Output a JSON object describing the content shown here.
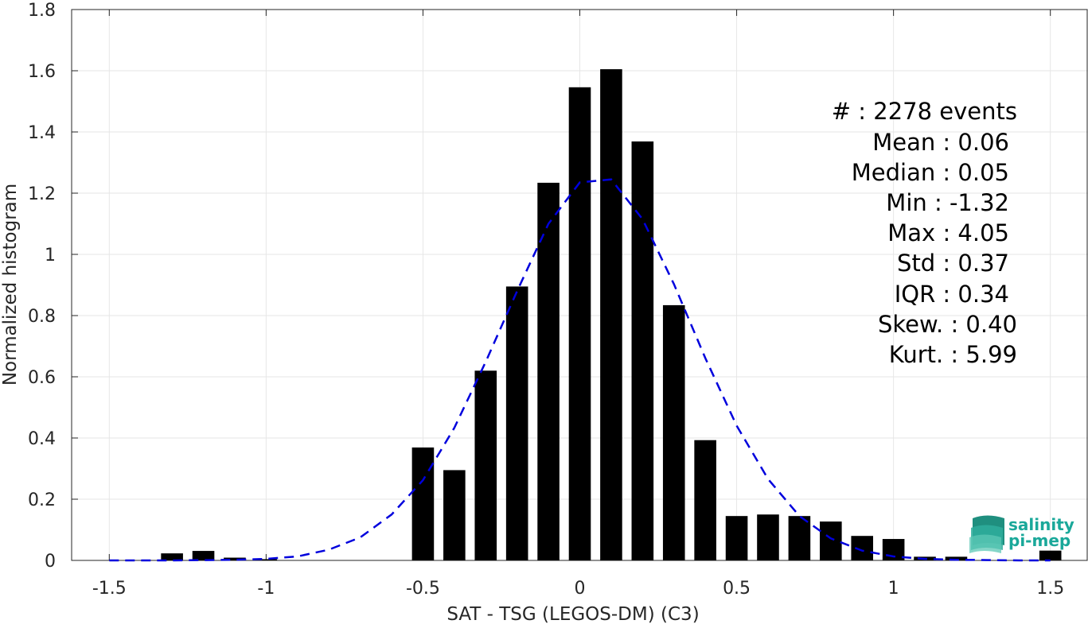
{
  "chart_data": {
    "type": "bar",
    "xlabel": "SAT - TSG (LEGOS-DM) (C3)",
    "ylabel": "Normalized histogram",
    "xlim": [
      -1.62,
      1.62
    ],
    "ylim": [
      0,
      1.8
    ],
    "xticks": [
      -1.5,
      -1,
      -0.5,
      0,
      0.5,
      1,
      1.5
    ],
    "xtick_labels": [
      "-1.5",
      "-1",
      "-0.5",
      "0",
      "0.5",
      "1",
      "1.5"
    ],
    "yticks": [
      0,
      0.2,
      0.4,
      0.6,
      0.8,
      1,
      1.2,
      1.4,
      1.6,
      1.8
    ],
    "ytick_labels": [
      "0",
      "0.2",
      "0.4",
      "0.6",
      "0.8",
      "1",
      "1.2",
      "1.4",
      "1.6",
      "1.8"
    ],
    "grid": true,
    "bar_color": "#000000",
    "bars": [
      {
        "x": -1.3,
        "value": 0.023
      },
      {
        "x": -1.2,
        "value": 0.031
      },
      {
        "x": -1.1,
        "value": 0.009
      },
      {
        "x": -1.0,
        "value": 0.004
      },
      {
        "x": -0.5,
        "value": 0.369
      },
      {
        "x": -0.4,
        "value": 0.295
      },
      {
        "x": -0.3,
        "value": 0.62
      },
      {
        "x": -0.2,
        "value": 0.895
      },
      {
        "x": -0.1,
        "value": 1.234
      },
      {
        "x": 0.0,
        "value": 1.546
      },
      {
        "x": 0.1,
        "value": 1.605
      },
      {
        "x": 0.2,
        "value": 1.369
      },
      {
        "x": 0.3,
        "value": 0.834
      },
      {
        "x": 0.4,
        "value": 0.393
      },
      {
        "x": 0.5,
        "value": 0.145
      },
      {
        "x": 0.6,
        "value": 0.15
      },
      {
        "x": 0.7,
        "value": 0.145
      },
      {
        "x": 0.8,
        "value": 0.127
      },
      {
        "x": 0.9,
        "value": 0.08
      },
      {
        "x": 1.0,
        "value": 0.07
      },
      {
        "x": 1.1,
        "value": 0.012
      },
      {
        "x": 1.2,
        "value": 0.012
      },
      {
        "x": 1.5,
        "value": 0.032
      }
    ],
    "fit_curve": {
      "type": "gaussian",
      "color": "#0000dd",
      "style": "dashed",
      "points": [
        [
          -1.5,
          0.0
        ],
        [
          -1.4,
          0.0
        ],
        [
          -1.3,
          0.0
        ],
        [
          -1.2,
          0.001
        ],
        [
          -1.1,
          0.002
        ],
        [
          -1.0,
          0.005
        ],
        [
          -0.9,
          0.013
        ],
        [
          -0.8,
          0.035
        ],
        [
          -0.7,
          0.075
        ],
        [
          -0.6,
          0.15
        ],
        [
          -0.5,
          0.262
        ],
        [
          -0.4,
          0.433
        ],
        [
          -0.3,
          0.649
        ],
        [
          -0.2,
          0.88
        ],
        [
          -0.1,
          1.1
        ],
        [
          0.0,
          1.235
        ],
        [
          0.1,
          1.245
        ],
        [
          0.2,
          1.115
        ],
        [
          0.3,
          0.903
        ],
        [
          0.4,
          0.661
        ],
        [
          0.5,
          0.44
        ],
        [
          0.6,
          0.266
        ],
        [
          0.7,
          0.145
        ],
        [
          0.8,
          0.072
        ],
        [
          0.9,
          0.032
        ],
        [
          1.0,
          0.013
        ],
        [
          1.1,
          0.005
        ],
        [
          1.2,
          0.002
        ],
        [
          1.3,
          0.001
        ],
        [
          1.4,
          0.0
        ],
        [
          1.5,
          0.0
        ]
      ]
    },
    "annotations": [
      "#  : 2278 events",
      "Mean : 0.06",
      "Median : 0.05",
      "Min : -1.32",
      "Max : 4.05",
      "Std : 0.37",
      "IQR : 0.34",
      "Skew. : 0.40",
      "Kurt. : 5.99"
    ]
  },
  "logo": {
    "line1": "salinity",
    "line2": "pi-mep",
    "color": "#1aa89a"
  }
}
